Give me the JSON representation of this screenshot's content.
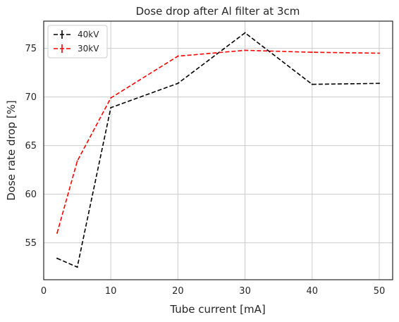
{
  "chart_data": {
    "type": "line",
    "title": "Dose drop after Al filter at 3cm",
    "xlabel": "Tube current [mA]",
    "ylabel": "Dose rate drop [%]",
    "xlim": [
      0,
      52
    ],
    "ylim": [
      51.2,
      77.8
    ],
    "xticks": [
      0,
      10,
      20,
      30,
      40,
      50
    ],
    "yticks": [
      55,
      60,
      65,
      70,
      75
    ],
    "grid": true,
    "legend_position": "top-left",
    "series": [
      {
        "name": "40kV",
        "color": "#000000",
        "linestyle": "dashed",
        "x": [
          2,
          5,
          10,
          20,
          30,
          40,
          50
        ],
        "y": [
          53.4,
          52.5,
          68.9,
          71.4,
          76.6,
          71.3,
          71.4
        ]
      },
      {
        "name": "30kV",
        "color": "#ff0000",
        "linestyle": "dashed",
        "x": [
          2,
          5,
          10,
          20,
          30,
          40,
          50
        ],
        "y": [
          56.0,
          63.4,
          69.9,
          74.2,
          74.8,
          74.6,
          74.5
        ]
      }
    ]
  }
}
